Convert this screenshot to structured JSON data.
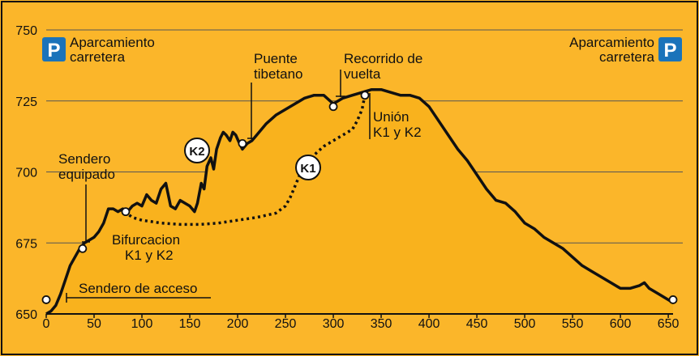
{
  "chart_data": {
    "type": "area",
    "title": "",
    "xlabel": "",
    "ylabel": "",
    "xlim": [
      0,
      655
    ],
    "ylim": [
      650,
      752
    ],
    "x_ticks": [
      0,
      50,
      100,
      150,
      200,
      250,
      300,
      350,
      400,
      450,
      500,
      550,
      600,
      650
    ],
    "y_ticks": [
      650,
      675,
      700,
      725,
      750
    ],
    "grid": true,
    "colors": {
      "fill": "#f9b21d",
      "background": "#fbb62a",
      "line": "#111111",
      "parking": "#1a73ba"
    },
    "series": [
      {
        "x": [
          0,
          5,
          10,
          15,
          20,
          25,
          30,
          35,
          40,
          45,
          50,
          55,
          60,
          65,
          70,
          75,
          80,
          85,
          90,
          95,
          100,
          105,
          110,
          115,
          120,
          125,
          130,
          135,
          140,
          145,
          150,
          155,
          158,
          162,
          165,
          168,
          172,
          175,
          178,
          182,
          185,
          188,
          192,
          195,
          198,
          202,
          205,
          210,
          215,
          220,
          230,
          240,
          250,
          260,
          270,
          280,
          290,
          300,
          310,
          320,
          330,
          340,
          350,
          360,
          370,
          380,
          390,
          400,
          410,
          420,
          430,
          440,
          450,
          460,
          470,
          480,
          490,
          500,
          510,
          520,
          530,
          540,
          550,
          560,
          570,
          580,
          590,
          600,
          610,
          620,
          625,
          630,
          640,
          650,
          655
        ],
        "y": [
          650,
          651,
          653,
          657,
          662,
          667,
          670,
          673,
          675,
          676,
          677,
          679,
          682,
          687,
          687,
          686,
          687,
          686,
          688,
          689,
          688,
          692,
          690,
          689,
          694,
          696,
          688,
          687,
          690,
          689,
          688,
          686,
          689,
          696,
          694,
          702,
          705,
          701,
          708,
          712,
          714,
          713,
          711,
          714,
          713,
          710,
          708,
          710,
          711,
          713,
          717,
          720,
          722,
          724,
          726,
          727,
          727,
          724,
          726,
          727,
          728,
          729,
          729,
          728,
          727,
          727,
          726,
          723,
          718,
          713,
          708,
          704,
          699,
          694,
          690,
          689,
          686,
          682,
          680,
          677,
          675,
          673,
          670,
          667,
          665,
          663,
          661,
          659,
          659,
          660,
          661,
          659,
          657,
          655,
          654
        ]
      },
      {
        "x": [
          82,
          90,
          100,
          110,
          120,
          140,
          160,
          180,
          200,
          220,
          240,
          250,
          255,
          260,
          265,
          270,
          275,
          280,
          290,
          300,
          310,
          320,
          325,
          330,
          333
        ],
        "y": [
          686,
          684,
          683,
          682.5,
          682,
          681.5,
          681.5,
          682,
          683,
          684,
          685.5,
          688,
          691,
          695,
          699,
          702,
          704,
          706,
          709,
          711,
          713,
          715,
          718,
          722,
          727
        ],
        "style": "dotted"
      }
    ],
    "points": [
      {
        "x": 0,
        "y": 655
      },
      {
        "x": 38,
        "y": 673
      },
      {
        "x": 83,
        "y": 686
      },
      {
        "x": 205,
        "y": 710
      },
      {
        "x": 300,
        "y": 723
      },
      {
        "x": 333,
        "y": 727
      },
      {
        "x": 655,
        "y": 655
      }
    ],
    "annotations": [
      "Sendero equipado",
      "Bifurcacion K1 y K2",
      "Sendero de acceso",
      "Puente tibetano",
      "Recorrido de vuelta",
      "Unión K1 y K2",
      "Aparcamiento carretera"
    ]
  },
  "labels": {
    "sendero_eq": [
      "Sendero",
      "equipado"
    ],
    "bifurcacion": [
      "Bifurcacion",
      "K1 y K2"
    ],
    "acceso": "Sendero de acceso",
    "puente": [
      "Puente",
      "tibetano"
    ],
    "recorrido": [
      "Recorrido de",
      "vuelta"
    ],
    "union": [
      "Unión",
      "K1 y K2"
    ],
    "parking_left": [
      "Aparcamiento",
      "carretera"
    ],
    "parking_right": [
      "Aparcamiento",
      "carretera"
    ],
    "parking_symbol": "P",
    "k1": "K1",
    "k2": "K2"
  }
}
